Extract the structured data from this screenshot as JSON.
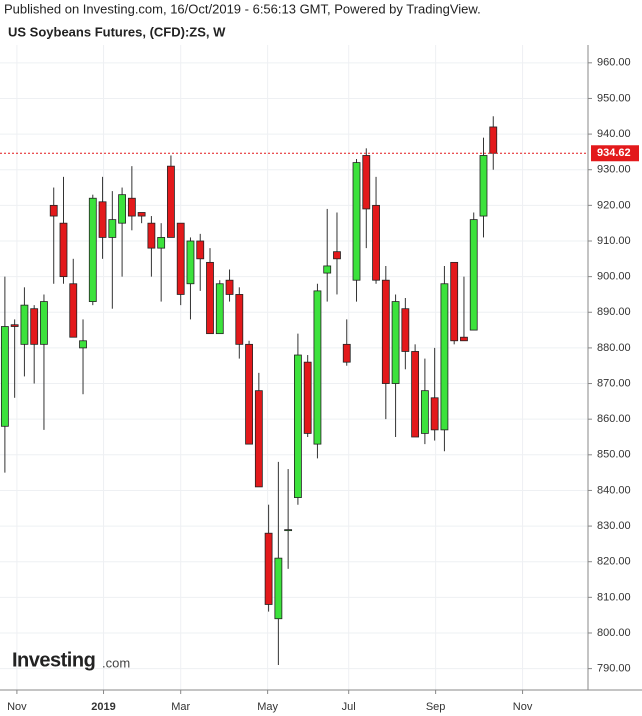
{
  "header": "Published on Investing.com, 16/Oct/2019 - 6:56:13 GMT, Powered by TradingView.",
  "logo": {
    "name": "Investing",
    "suffix": ".com"
  },
  "chart_data": {
    "type": "candlestick",
    "title": "US Soybeans Futures, (CFD):ZS, W",
    "open": [
      858,
      886.5,
      881,
      891,
      881,
      920,
      915,
      898,
      880,
      893,
      921,
      911,
      915,
      922,
      918,
      915,
      908,
      931,
      915,
      898,
      910,
      904,
      884,
      899,
      895,
      881,
      868,
      828,
      804,
      829,
      838,
      876,
      853,
      901,
      907,
      881,
      899,
      934,
      920,
      899,
      870,
      891,
      879,
      856,
      866,
      857,
      904,
      883,
      885,
      917,
      942
    ],
    "high": [
      900,
      888,
      897,
      892,
      895,
      925,
      928,
      905,
      888,
      923,
      928,
      924,
      925,
      931,
      918,
      917,
      915,
      934,
      915,
      911,
      912,
      908,
      899,
      902,
      897,
      882,
      873,
      836,
      848,
      846,
      884,
      878,
      898,
      919,
      918,
      888,
      933,
      936,
      928,
      903,
      895,
      894,
      881,
      877,
      880,
      903,
      904,
      900,
      918,
      939,
      945
    ],
    "low": [
      845,
      866,
      872,
      870,
      857,
      898,
      898,
      883,
      867,
      892,
      905,
      891,
      900,
      913,
      915,
      900,
      893,
      911,
      892,
      888,
      896,
      884,
      884,
      893,
      877,
      853,
      841,
      806,
      791,
      818,
      836,
      855,
      849,
      893,
      895,
      875,
      893,
      908,
      898,
      860,
      855,
      874,
      855,
      853,
      854,
      851,
      881,
      882,
      885,
      911,
      930
    ],
    "close": [
      886,
      886,
      892,
      881,
      893,
      917,
      900,
      883,
      882,
      922,
      911,
      916,
      923,
      917,
      917,
      908,
      911,
      911,
      895,
      910,
      905,
      884,
      898,
      895,
      881,
      853,
      841,
      808,
      821,
      829,
      878,
      856,
      896,
      903,
      905,
      876,
      932,
      919,
      899,
      870,
      893,
      879,
      855,
      868,
      857,
      898,
      882,
      882,
      916,
      934,
      934.62
    ],
    "up_color": "#3ce23c",
    "down_color": "#e3191b",
    "ylim": [
      784,
      965
    ],
    "yticks": [
      {
        "value": 790,
        "label": "790.00"
      },
      {
        "value": 800,
        "label": "800.00"
      },
      {
        "value": 810,
        "label": "810.00"
      },
      {
        "value": 820,
        "label": "820.00"
      },
      {
        "value": 830,
        "label": "830.00"
      },
      {
        "value": 840,
        "label": "840.00"
      },
      {
        "value": 850,
        "label": "850.00"
      },
      {
        "value": 860,
        "label": "860.00"
      },
      {
        "value": 870,
        "label": "870.00"
      },
      {
        "value": 880,
        "label": "880.00"
      },
      {
        "value": 890,
        "label": "890.00"
      },
      {
        "value": 900,
        "label": "900.00"
      },
      {
        "value": 910,
        "label": "910.00"
      },
      {
        "value": 920,
        "label": "920.00"
      },
      {
        "value": 930,
        "label": "930.00"
      },
      {
        "value": 940,
        "label": "940.00"
      },
      {
        "value": 950,
        "label": "950.00"
      },
      {
        "value": 960,
        "label": "960.00"
      }
    ],
    "xlim": [
      -0.5,
      59.7
    ],
    "xticks": [
      {
        "value": 1.23,
        "label": "Nov"
      },
      {
        "value": 10.1,
        "label": "2019"
      },
      {
        "value": 18,
        "label": "Mar"
      },
      {
        "value": 26.9,
        "label": "May"
      },
      {
        "value": 35.2,
        "label": "Jul"
      },
      {
        "value": 44.1,
        "label": "Sep"
      },
      {
        "value": 53,
        "label": "Nov"
      }
    ],
    "last_price": {
      "value": 934.62,
      "label": "934.62",
      "color": "#e3191b"
    },
    "grid": true
  }
}
